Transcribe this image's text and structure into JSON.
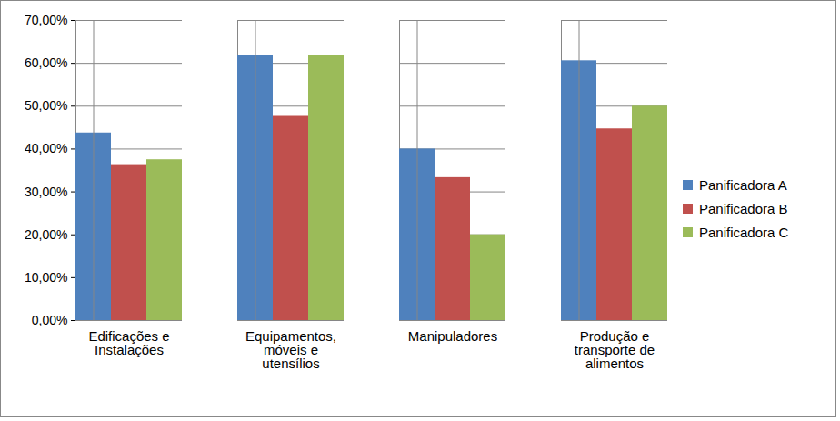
{
  "chart_data": {
    "type": "bar",
    "categories": [
      "Edificações e Instalações",
      "Equipamentos, móveis e utensílios",
      "Manipuladores",
      "Produção e transporte de alimentos"
    ],
    "series": [
      {
        "name": "Panificadora A",
        "color": "#4f81bd",
        "values": [
          43.75,
          61.9,
          40,
          60.6
        ]
      },
      {
        "name": "Panificadora B",
        "color": "#c0504d",
        "values": [
          36.36,
          47.62,
          33.33,
          44.7
        ]
      },
      {
        "name": "Panificadora C",
        "color": "#9bbb59",
        "values": [
          37.5,
          61.9,
          20,
          50
        ]
      }
    ],
    "ylim": [
      0,
      70
    ],
    "yticks": [
      {
        "value": 0,
        "label": "0,00%"
      },
      {
        "value": 10,
        "label": "10,00%"
      },
      {
        "value": 20,
        "label": "20,00%"
      },
      {
        "value": 30,
        "label": "30,00%"
      },
      {
        "value": 40,
        "label": "40,00%"
      },
      {
        "value": 50,
        "label": "50,00%"
      },
      {
        "value": 60,
        "label": "60,00%"
      },
      {
        "value": 70,
        "label": "70,00%"
      }
    ],
    "grid": true,
    "legend": "right"
  }
}
